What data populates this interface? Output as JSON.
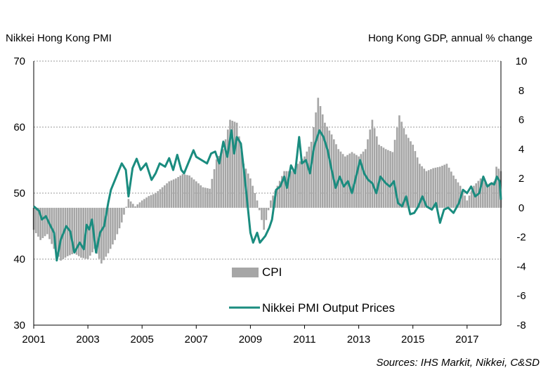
{
  "chart_data": {
    "type": "bar+line",
    "left_axis": {
      "label": "Nikkei Hong Kong PMI",
      "min": 30,
      "max": 70,
      "ticks": [
        30,
        40,
        50,
        60,
        70
      ]
    },
    "right_axis": {
      "label": "Hong Kong GDP, annual % change",
      "min": -8,
      "max": 10,
      "ticks": [
        -8,
        -6,
        -4,
        -2,
        0,
        2,
        4,
        6,
        8,
        10
      ]
    },
    "x_axis": {
      "ticks": [
        "2001",
        "2003",
        "2005",
        "2007",
        "2009",
        "2011",
        "2013",
        "2015",
        "2017"
      ],
      "start_year": 2001,
      "end_year": 2018.25
    },
    "grid": "horizontal dashed",
    "legend": [
      "CPI",
      "Nikkei PMI Output Prices"
    ],
    "series": [
      {
        "name": "CPI",
        "type": "bar",
        "axis": "right",
        "color": "#a6a6a6",
        "anchors": [
          [
            2001.0,
            -1.5
          ],
          [
            2001.25,
            -2.2
          ],
          [
            2001.5,
            -1.8
          ],
          [
            2001.75,
            -2.8
          ],
          [
            2002.0,
            -3.6
          ],
          [
            2002.25,
            -3.3
          ],
          [
            2002.5,
            -3.1
          ],
          [
            2002.75,
            -3.4
          ],
          [
            2003.0,
            -3.5
          ],
          [
            2003.25,
            -2.8
          ],
          [
            2003.5,
            -3.8
          ],
          [
            2003.75,
            -3.1
          ],
          [
            2004.0,
            -2.2
          ],
          [
            2004.25,
            -1.0
          ],
          [
            2004.5,
            0.6
          ],
          [
            2004.75,
            0.1
          ],
          [
            2005.0,
            0.5
          ],
          [
            2005.25,
            0.8
          ],
          [
            2005.5,
            1.0
          ],
          [
            2005.75,
            1.4
          ],
          [
            2006.0,
            1.8
          ],
          [
            2006.25,
            2.0
          ],
          [
            2006.5,
            2.3
          ],
          [
            2006.75,
            2.2
          ],
          [
            2007.0,
            1.8
          ],
          [
            2007.25,
            1.4
          ],
          [
            2007.5,
            1.3
          ],
          [
            2007.75,
            3.3
          ],
          [
            2008.0,
            4.0
          ],
          [
            2008.25,
            6.0
          ],
          [
            2008.5,
            5.8
          ],
          [
            2008.75,
            3.0
          ],
          [
            2009.0,
            2.0
          ],
          [
            2009.25,
            0.5
          ],
          [
            2009.5,
            -1.5
          ],
          [
            2009.75,
            0.5
          ],
          [
            2010.0,
            1.5
          ],
          [
            2010.25,
            2.5
          ],
          [
            2010.5,
            2.5
          ],
          [
            2010.75,
            3.0
          ],
          [
            2011.0,
            3.5
          ],
          [
            2011.25,
            4.5
          ],
          [
            2011.5,
            7.5
          ],
          [
            2011.75,
            5.8
          ],
          [
            2012.0,
            5.0
          ],
          [
            2012.25,
            4.0
          ],
          [
            2012.5,
            3.5
          ],
          [
            2012.75,
            3.8
          ],
          [
            2013.0,
            3.5
          ],
          [
            2013.25,
            4.0
          ],
          [
            2013.5,
            6.0
          ],
          [
            2013.75,
            4.3
          ],
          [
            2014.0,
            4.0
          ],
          [
            2014.25,
            3.8
          ],
          [
            2014.5,
            6.3
          ],
          [
            2014.75,
            5.0
          ],
          [
            2015.0,
            4.3
          ],
          [
            2015.25,
            3.0
          ],
          [
            2015.5,
            2.5
          ],
          [
            2015.75,
            2.7
          ],
          [
            2016.0,
            2.8
          ],
          [
            2016.25,
            3.0
          ],
          [
            2016.5,
            2.2
          ],
          [
            2016.75,
            1.5
          ],
          [
            2017.0,
            0.5
          ],
          [
            2017.25,
            1.5
          ],
          [
            2017.5,
            2.0
          ],
          [
            2017.75,
            1.6
          ],
          [
            2018.0,
            1.8
          ],
          [
            2018.1,
            3.0
          ],
          [
            2018.2,
            2.5
          ]
        ]
      },
      {
        "name": "Nikkei PMI Output Prices",
        "type": "line",
        "axis": "left",
        "color": "#1a8c7f",
        "anchors": [
          [
            2001.0,
            48.0
          ],
          [
            2001.2,
            47.3
          ],
          [
            2001.3,
            46.0
          ],
          [
            2001.45,
            46.5
          ],
          [
            2001.6,
            45.2
          ],
          [
            2001.75,
            44.0
          ],
          [
            2001.85,
            39.8
          ],
          [
            2002.0,
            43.0
          ],
          [
            2002.2,
            45.0
          ],
          [
            2002.35,
            44.2
          ],
          [
            2002.5,
            41.0
          ],
          [
            2002.7,
            42.5
          ],
          [
            2002.85,
            41.5
          ],
          [
            2002.95,
            45.2
          ],
          [
            2003.05,
            44.5
          ],
          [
            2003.15,
            46.0
          ],
          [
            2003.3,
            41.0
          ],
          [
            2003.45,
            44.0
          ],
          [
            2003.6,
            45.0
          ],
          [
            2003.75,
            48.5
          ],
          [
            2003.85,
            50.5
          ],
          [
            2004.0,
            52.0
          ],
          [
            2004.1,
            53.0
          ],
          [
            2004.25,
            54.5
          ],
          [
            2004.4,
            53.5
          ],
          [
            2004.5,
            49.5
          ],
          [
            2004.65,
            53.8
          ],
          [
            2004.8,
            55.2
          ],
          [
            2004.95,
            53.5
          ],
          [
            2005.15,
            54.5
          ],
          [
            2005.35,
            52.0
          ],
          [
            2005.5,
            53.0
          ],
          [
            2005.65,
            54.5
          ],
          [
            2005.85,
            54.0
          ],
          [
            2006.0,
            55.3
          ],
          [
            2006.15,
            53.5
          ],
          [
            2006.3,
            55.8
          ],
          [
            2006.45,
            53.5
          ],
          [
            2006.55,
            53.0
          ],
          [
            2006.75,
            55.0
          ],
          [
            2006.9,
            56.5
          ],
          [
            2007.0,
            55.5
          ],
          [
            2007.2,
            55.0
          ],
          [
            2007.4,
            54.5
          ],
          [
            2007.55,
            56.0
          ],
          [
            2007.7,
            56.3
          ],
          [
            2007.85,
            54.5
          ],
          [
            2008.0,
            57.8
          ],
          [
            2008.15,
            55.5
          ],
          [
            2008.3,
            59.5
          ],
          [
            2008.4,
            56.0
          ],
          [
            2008.5,
            58.5
          ],
          [
            2008.65,
            57.5
          ],
          [
            2008.8,
            52.0
          ],
          [
            2008.9,
            48.0
          ],
          [
            2009.0,
            44.0
          ],
          [
            2009.1,
            42.5
          ],
          [
            2009.25,
            44.0
          ],
          [
            2009.35,
            42.5
          ],
          [
            2009.55,
            43.5
          ],
          [
            2009.7,
            44.8
          ],
          [
            2009.8,
            46.0
          ],
          [
            2009.95,
            50.5
          ],
          [
            2010.1,
            51.0
          ],
          [
            2010.25,
            52.5
          ],
          [
            2010.35,
            50.8
          ],
          [
            2010.5,
            54.2
          ],
          [
            2010.65,
            53.0
          ],
          [
            2010.8,
            58.5
          ],
          [
            2010.9,
            54.5
          ],
          [
            2011.05,
            55.0
          ],
          [
            2011.2,
            53.0
          ],
          [
            2011.35,
            57.0
          ],
          [
            2011.55,
            59.5
          ],
          [
            2011.7,
            58.5
          ],
          [
            2011.85,
            56.5
          ],
          [
            2012.0,
            53.5
          ],
          [
            2012.15,
            50.8
          ],
          [
            2012.3,
            52.5
          ],
          [
            2012.45,
            51.0
          ],
          [
            2012.6,
            51.8
          ],
          [
            2012.75,
            50.0
          ],
          [
            2012.9,
            52.5
          ],
          [
            2013.05,
            55.0
          ],
          [
            2013.2,
            53.0
          ],
          [
            2013.35,
            52.0
          ],
          [
            2013.5,
            51.5
          ],
          [
            2013.65,
            50.0
          ],
          [
            2013.8,
            52.5
          ],
          [
            2014.0,
            51.5
          ],
          [
            2014.15,
            51.0
          ],
          [
            2014.3,
            51.8
          ],
          [
            2014.45,
            48.5
          ],
          [
            2014.6,
            48.0
          ],
          [
            2014.75,
            49.5
          ],
          [
            2014.9,
            46.8
          ],
          [
            2015.05,
            47.0
          ],
          [
            2015.2,
            48.0
          ],
          [
            2015.35,
            49.5
          ],
          [
            2015.5,
            48.0
          ],
          [
            2015.7,
            47.5
          ],
          [
            2015.85,
            48.5
          ],
          [
            2016.0,
            45.5
          ],
          [
            2016.15,
            47.5
          ],
          [
            2016.3,
            47.8
          ],
          [
            2016.5,
            47.0
          ],
          [
            2016.7,
            48.5
          ],
          [
            2016.85,
            50.5
          ],
          [
            2017.0,
            50.0
          ],
          [
            2017.15,
            51.0
          ],
          [
            2017.3,
            49.5
          ],
          [
            2017.45,
            50.0
          ],
          [
            2017.6,
            52.5
          ],
          [
            2017.75,
            51.0
          ],
          [
            2017.9,
            51.5
          ],
          [
            2018.0,
            51.3
          ],
          [
            2018.1,
            52.5
          ],
          [
            2018.2,
            51.8
          ],
          [
            2018.25,
            49.0
          ]
        ]
      }
    ]
  },
  "labels": {
    "left_title": "Nikkei Hong Kong PMI",
    "right_title": "Hong Kong GDP, annual % change",
    "legend_cpi": "CPI",
    "legend_pmi": "Nikkei PMI Output Prices",
    "source": "Sources: IHS Markit, Nikkei, C&SD"
  }
}
